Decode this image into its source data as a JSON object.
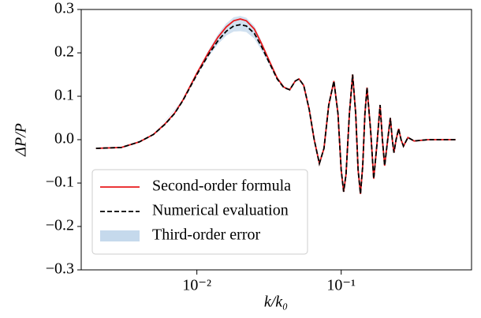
{
  "chart_data": {
    "type": "line",
    "xlabel": "k/k₀",
    "ylabel": "ΔP/P",
    "xscale": "log",
    "x": [
      0.002,
      0.003,
      0.004,
      0.005,
      0.006,
      0.007,
      0.008,
      0.01,
      0.012,
      0.014,
      0.016,
      0.018,
      0.02,
      0.022,
      0.025,
      0.028,
      0.032,
      0.036,
      0.04,
      0.044,
      0.048,
      0.051,
      0.055,
      0.06,
      0.065,
      0.0706,
      0.076,
      0.082,
      0.089,
      0.095,
      0.1,
      0.104,
      0.108,
      0.114,
      0.12,
      0.126,
      0.131,
      0.136,
      0.141,
      0.146,
      0.151,
      0.16,
      0.168,
      0.177,
      0.186,
      0.193,
      0.2,
      0.21,
      0.219,
      0.226,
      0.232,
      0.24,
      0.25,
      0.26,
      0.27,
      0.29,
      0.32,
      0.4,
      0.5,
      0.62
    ],
    "series": [
      {
        "name": "Second-order formula",
        "color": "#e8191c",
        "dash": false,
        "values": [
          -0.02,
          -0.018,
          -0.005,
          0.012,
          0.036,
          0.061,
          0.091,
          0.153,
          0.2,
          0.236,
          0.26,
          0.274,
          0.278,
          0.274,
          0.255,
          0.222,
          0.179,
          0.142,
          0.121,
          0.115,
          0.135,
          0.14,
          0.125,
          0.07,
          0.0,
          -0.055,
          -0.02,
          0.08,
          0.135,
          0.06,
          -0.07,
          -0.12,
          -0.08,
          0.06,
          0.15,
          0.06,
          -0.07,
          -0.125,
          -0.06,
          0.06,
          0.12,
          0.02,
          -0.09,
          -0.01,
          0.08,
          0.0,
          -0.06,
          0.0,
          0.05,
          0.0,
          -0.03,
          0.0,
          0.025,
          0.0,
          -0.015,
          0.005,
          -0.003,
          0.0,
          0.0,
          0.0
        ]
      },
      {
        "name": "Numerical evaluation",
        "color": "#000000",
        "dash": true,
        "values": [
          -0.02,
          -0.018,
          -0.005,
          0.012,
          0.035,
          0.06,
          0.09,
          0.15,
          0.195,
          0.228,
          0.25,
          0.262,
          0.265,
          0.262,
          0.245,
          0.215,
          0.175,
          0.14,
          0.12,
          0.115,
          0.135,
          0.14,
          0.125,
          0.07,
          0.0,
          -0.055,
          -0.02,
          0.08,
          0.135,
          0.06,
          -0.07,
          -0.12,
          -0.08,
          0.06,
          0.15,
          0.06,
          -0.07,
          -0.125,
          -0.06,
          0.06,
          0.12,
          0.02,
          -0.09,
          -0.01,
          0.08,
          0.0,
          -0.06,
          0.0,
          0.05,
          0.0,
          -0.03,
          0.0,
          0.025,
          0.0,
          -0.015,
          0.005,
          -0.003,
          0.0,
          0.0,
          0.0
        ]
      }
    ],
    "band": {
      "name": "Third-order error",
      "color": "#c5d9ec",
      "x": [
        0.005,
        0.008,
        0.01,
        0.012,
        0.014,
        0.016,
        0.018,
        0.02,
        0.022,
        0.025,
        0.028,
        0.032,
        0.036,
        0.04
      ],
      "lower": [
        0.012,
        0.089,
        0.147,
        0.19,
        0.22,
        0.24,
        0.249,
        0.25,
        0.248,
        0.233,
        0.206,
        0.17,
        0.138,
        0.12
      ],
      "upper": [
        0.012,
        0.092,
        0.156,
        0.205,
        0.243,
        0.268,
        0.282,
        0.285,
        0.281,
        0.262,
        0.227,
        0.182,
        0.143,
        0.121
      ]
    },
    "xlim": [
      0.00158,
      0.8
    ],
    "xticks": [
      {
        "value": 0.01,
        "label": "10⁻²"
      },
      {
        "value": 0.1,
        "label": "10⁻¹"
      }
    ],
    "ylim": [
      -0.3,
      0.3
    ],
    "yticks": [
      0.3,
      0.2,
      0.1,
      {
        "value": 0,
        "label": "0.0"
      },
      {
        "value": -0.1,
        "label": "−0.1"
      },
      {
        "value": -0.2,
        "label": "−0.2"
      },
      {
        "value": -0.3,
        "label": "−0.3"
      }
    ],
    "legend": "lower left"
  }
}
